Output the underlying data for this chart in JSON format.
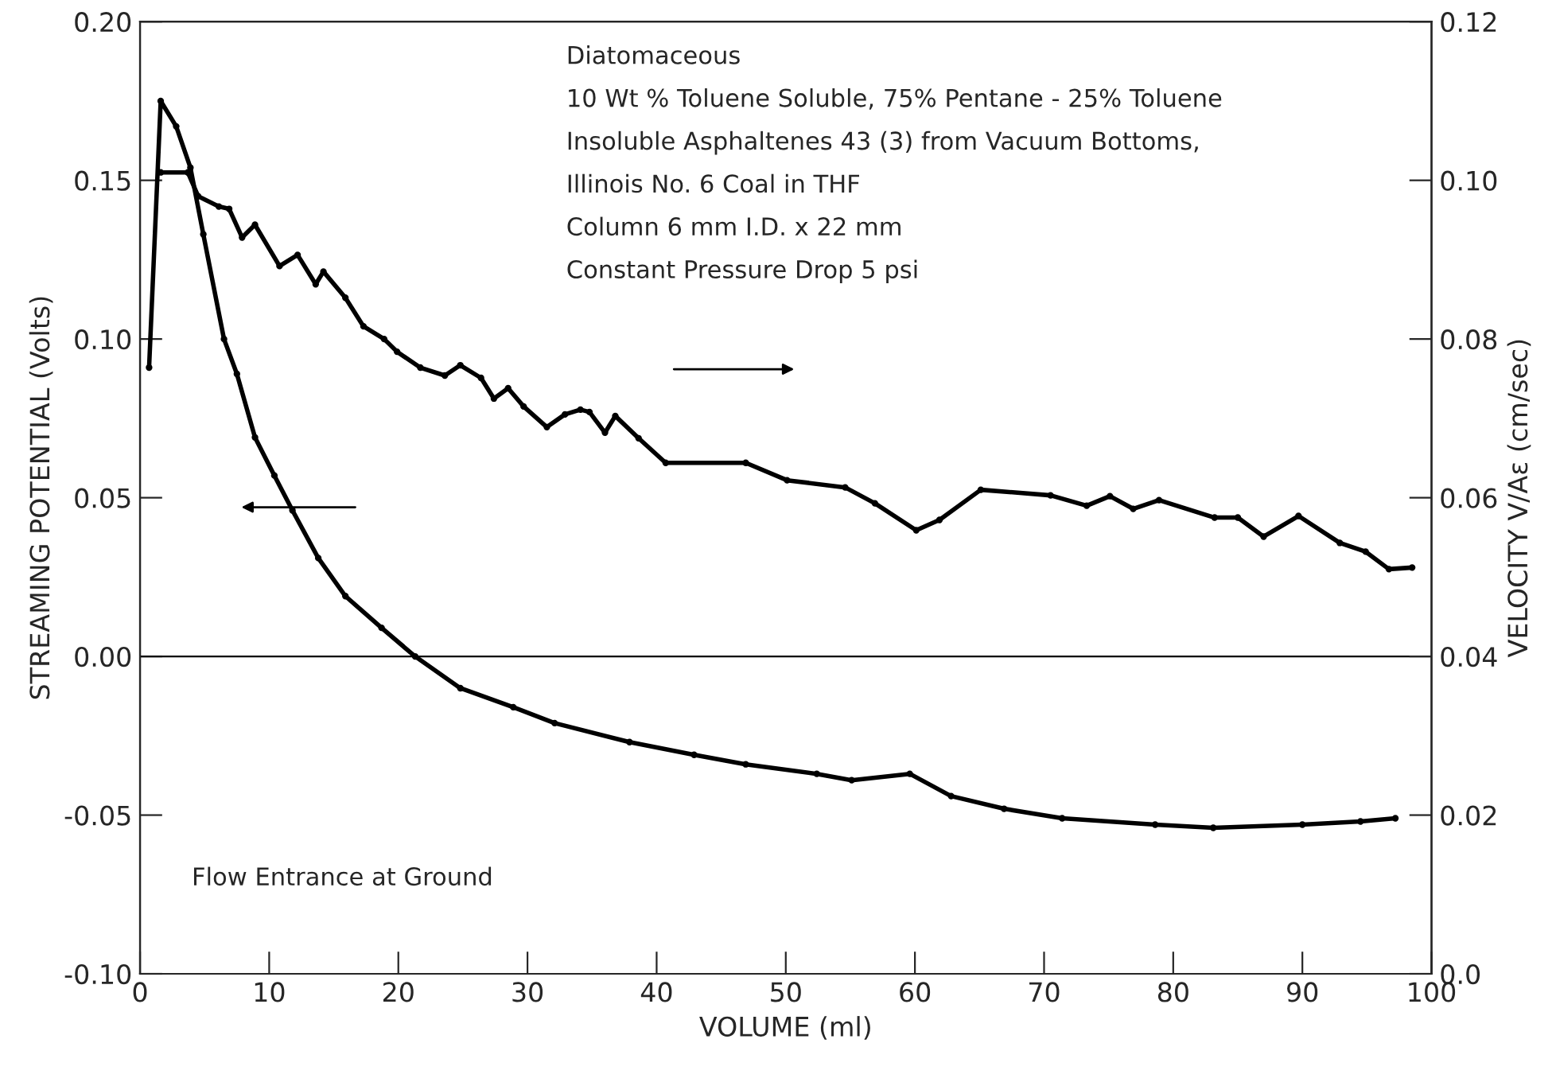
{
  "chart_data": {
    "type": "line",
    "xlabel": "VOLUME (ml)",
    "ylabel": "STREAMING POTENTIAL (Volts)",
    "y2label": "VELOCITY V/Aε (cm/sec)",
    "xlim": [
      0,
      100
    ],
    "xticks": [
      0,
      10,
      20,
      30,
      40,
      50,
      60,
      70,
      80,
      90,
      100
    ],
    "ylim": [
      -0.1,
      0.2
    ],
    "yticks": [
      {
        "value": -0.1,
        "label": "-0.10"
      },
      {
        "value": -0.05,
        "label": "-0.05"
      },
      {
        "value": 0,
        "label": "0.00"
      },
      {
        "value": 0.05,
        "label": "0.05"
      },
      {
        "value": 0.1,
        "label": "0.10"
      },
      {
        "value": 0.15,
        "label": "0.15"
      },
      {
        "value": 0.2,
        "label": "0.20"
      }
    ],
    "y2lim": [
      0,
      0.12
    ],
    "y2ticks": [
      {
        "value": 0,
        "label": "0.0"
      },
      {
        "value": 0.02,
        "label": "0.02"
      },
      {
        "value": 0.04,
        "label": "0.04"
      },
      {
        "value": 0.06,
        "label": "0.06"
      },
      {
        "value": 0.08,
        "label": "0.08"
      },
      {
        "value": 0.1,
        "label": "0.10"
      },
      {
        "value": 0.12,
        "label": "0.12"
      }
    ],
    "grid": false,
    "legend": false,
    "marker": "circle",
    "line_style": "solid",
    "ref_lines": [
      {
        "axis": "y",
        "value": 0,
        "color": "#000000"
      }
    ],
    "series": [
      {
        "color": "#000000",
        "axis": "y",
        "x": [
          0.7,
          1.6,
          2.8,
          3.9,
          4.9,
          6.5,
          7.5,
          8.9,
          10.4,
          11.8,
          13.8,
          15.9,
          18.7,
          21.3,
          24.8,
          28.9,
          32.1,
          37.9,
          42.9,
          46.9,
          52.4,
          55.1,
          59.6,
          62.8,
          66.9,
          71.4,
          78.6,
          83.1,
          90.0,
          94.5,
          97.2
        ],
        "values": [
          0.091,
          0.175,
          0.167,
          0.154,
          0.133,
          0.1,
          0.089,
          0.069,
          0.057,
          0.046,
          0.031,
          0.019,
          0.009,
          0.0,
          -0.01,
          -0.016,
          -0.021,
          -0.027,
          -0.031,
          -0.034,
          -0.037,
          -0.039,
          -0.037,
          -0.044,
          -0.048,
          -0.051,
          -0.053,
          -0.054,
          -0.053,
          -0.052,
          -0.051
        ]
      },
      {
        "color": "#000000",
        "axis": "y2",
        "x": [
          1.6,
          3.7,
          4.5,
          6.1,
          6.9,
          7.9,
          8.9,
          10.8,
          12.2,
          13.6,
          14.2,
          15.9,
          17.3,
          18.9,
          19.9,
          21.7,
          23.6,
          24.8,
          26.4,
          27.4,
          28.5,
          29.7,
          31.5,
          32.9,
          34.1,
          34.8,
          36.0,
          36.8,
          38.6,
          40.7,
          46.9,
          50.1,
          54.6,
          56.9,
          60.1,
          61.9,
          65.1,
          70.5,
          73.3,
          75.1,
          76.9,
          78.9,
          83.2,
          85.0,
          87.0,
          89.7,
          92.9,
          94.9,
          96.7,
          98.5
        ],
        "values": [
          0.101,
          0.101,
          0.098,
          0.0967,
          0.0964,
          0.0928,
          0.0944,
          0.0892,
          0.0906,
          0.0869,
          0.0885,
          0.0852,
          0.0816,
          0.08,
          0.0784,
          0.0764,
          0.0754,
          0.0767,
          0.0751,
          0.0725,
          0.0738,
          0.0715,
          0.0689,
          0.0705,
          0.0711,
          0.0708,
          0.0682,
          0.0703,
          0.0675,
          0.0644,
          0.0644,
          0.0622,
          0.0613,
          0.0593,
          0.0559,
          0.0572,
          0.061,
          0.0603,
          0.059,
          0.0602,
          0.0586,
          0.0597,
          0.0575,
          0.0575,
          0.0551,
          0.0577,
          0.0543,
          0.0532,
          0.051,
          0.0512
        ]
      }
    ],
    "annotations": [
      "Diatomaceous",
      "10 Wt % Toluene Soluble, 75% Pentane - 25% Toluene",
      "Insoluble Asphaltenes 43 (3) from Vacuum Bottoms,",
      "Illinois No. 6 Coal in THF",
      "Column 6 mm I.D. x 22 mm",
      "Constant Pressure Drop 5 psi",
      "Flow Entrance at Ground"
    ]
  }
}
